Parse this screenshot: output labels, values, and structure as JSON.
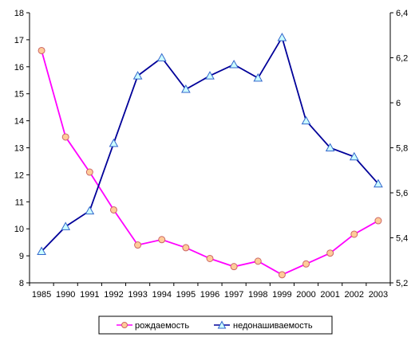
{
  "chart_data": {
    "type": "line",
    "categories": [
      "1985",
      "1990",
      "1991",
      "1992",
      "1993",
      "1994",
      "1995",
      "1996",
      "1997",
      "1998",
      "1999",
      "2000",
      "2001",
      "2002",
      "2003"
    ],
    "y_left": {
      "ylim": [
        8,
        18
      ],
      "ticks": [
        "8",
        "9",
        "10",
        "11",
        "12",
        "13",
        "14",
        "15",
        "16",
        "17",
        "18"
      ]
    },
    "y_right": {
      "ylim": [
        5.2,
        6.4
      ],
      "ticks": [
        "5,2",
        "5,4",
        "5,6",
        "5,8",
        "6",
        "6,2",
        "6,4"
      ]
    },
    "series": [
      {
        "name": "рождаемость",
        "axis": "left",
        "color": "#ff00ff",
        "marker": "circle",
        "marker_fill": "#ffcc99",
        "values": [
          16.6,
          13.4,
          12.1,
          10.7,
          9.4,
          9.6,
          9.3,
          8.9,
          8.6,
          8.8,
          8.3,
          8.7,
          9.1,
          9.8,
          10.3
        ]
      },
      {
        "name": "недонашиваемость",
        "axis": "right",
        "color": "#000099",
        "marker": "triangle",
        "marker_fill": "#ccffff",
        "values": [
          5.34,
          5.45,
          5.52,
          5.82,
          6.12,
          6.2,
          6.06,
          6.12,
          6.17,
          6.11,
          6.29,
          5.92,
          5.8,
          5.76,
          5.64
        ]
      }
    ],
    "grid": false,
    "legend": "bottom"
  }
}
